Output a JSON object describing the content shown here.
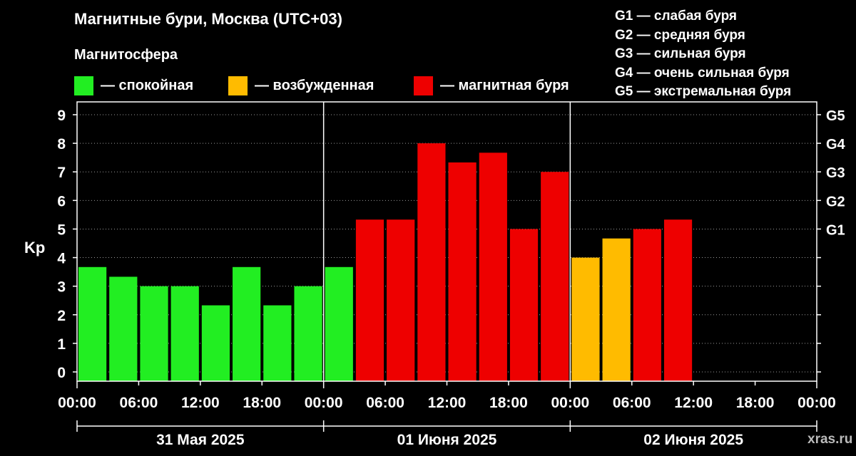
{
  "header": {
    "title": "Магнитные бури, Москва (UTC+03)",
    "subtitle": "Магнитосфера"
  },
  "legend": {
    "items": [
      {
        "label": "— спокойная",
        "color": "#22ee22"
      },
      {
        "label": "— возбужденная",
        "color": "#ffbb00"
      },
      {
        "label": "— магнитная буря",
        "color": "#ee0000"
      }
    ]
  },
  "storm_levels": [
    "G1 — слабая буря",
    "G2 — средняя буря",
    "G3 — сильная буря",
    "G4 — очень сильная буря",
    "G5 — экстремальная буря"
  ],
  "watermark": "xras.ru",
  "chart_data": {
    "type": "bar",
    "ylabel": "Kp",
    "ylim": [
      0,
      9.5
    ],
    "yticks": [
      0,
      1,
      2,
      3,
      4,
      5,
      6,
      7,
      8,
      9
    ],
    "right_ticks": [
      {
        "value": 5,
        "label": "G1"
      },
      {
        "value": 6,
        "label": "G2"
      },
      {
        "value": 7,
        "label": "G3"
      },
      {
        "value": 8,
        "label": "G4"
      },
      {
        "value": 9,
        "label": "G5"
      }
    ],
    "grid": true,
    "xtick_labels": [
      "00:00",
      "06:00",
      "12:00",
      "18:00",
      "00:00",
      "06:00",
      "12:00",
      "18:00",
      "00:00",
      "06:00",
      "12:00",
      "18:00",
      "00:00"
    ],
    "days": [
      "31 Мая 2025",
      "01 Июня 2025",
      "02 Июня 2025"
    ],
    "bar_hours": 3,
    "total_hours": 72,
    "values": [
      3.67,
      3.33,
      3.0,
      3.0,
      2.33,
      3.67,
      2.33,
      3.0,
      3.67,
      5.33,
      5.33,
      8.0,
      7.33,
      7.67,
      5.0,
      7.0,
      4.0,
      4.67,
      5.0,
      5.33
    ],
    "levels": [
      "quiet",
      "quiet",
      "quiet",
      "quiet",
      "quiet",
      "quiet",
      "quiet",
      "quiet",
      "quiet",
      "storm",
      "storm",
      "storm",
      "storm",
      "storm",
      "storm",
      "storm",
      "active",
      "active",
      "storm",
      "storm"
    ],
    "level_colors": {
      "quiet": "#22ee22",
      "active": "#ffbb00",
      "storm": "#ee0000"
    }
  }
}
